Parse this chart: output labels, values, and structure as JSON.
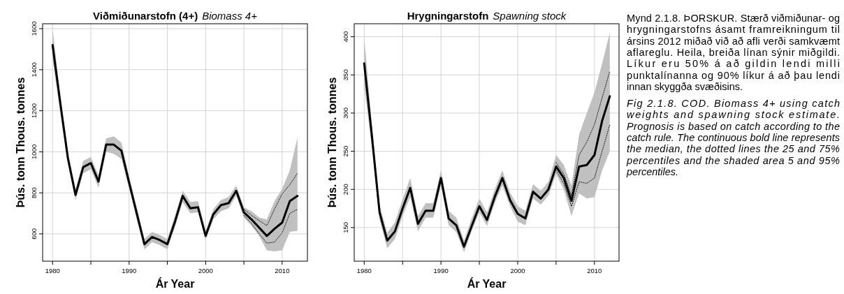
{
  "chart_data": [
    {
      "type": "line",
      "title": "Viðmiðunarstofn (4+)",
      "subtitle": "Biomass 4+",
      "xlabel": "Ár   Year",
      "ylabel": "Þús. tonn   Thous. tonnes",
      "x": [
        1980,
        1981,
        1982,
        1983,
        1984,
        1985,
        1986,
        1987,
        1988,
        1989,
        1990,
        1991,
        1992,
        1993,
        1994,
        1995,
        1996,
        1997,
        1998,
        1999,
        2000,
        2001,
        2002,
        2003,
        2004,
        2005,
        2006,
        2007,
        2008,
        2009,
        2010,
        2011,
        2012
      ],
      "series": [
        {
          "color": "#000000",
          "line_style": "solid",
          "values": [
            1520,
            1240,
            970,
            790,
            925,
            945,
            855,
            1035,
            1035,
            1005,
            850,
            700,
            550,
            585,
            570,
            550,
            660,
            785,
            725,
            730,
            590,
            695,
            740,
            750,
            810,
            705,
            670,
            630,
            590,
            625,
            655,
            760,
            785
          ],
          "lower": [
            1450,
            1190,
            940,
            765,
            895,
            915,
            825,
            1000,
            990,
            965,
            820,
            670,
            525,
            560,
            545,
            525,
            635,
            755,
            700,
            705,
            570,
            670,
            710,
            725,
            785,
            680,
            640,
            590,
            520,
            515,
            520,
            610,
            615
          ],
          "upper": [
            1600,
            1280,
            1000,
            815,
            955,
            975,
            885,
            1065,
            1075,
            1045,
            880,
            730,
            575,
            610,
            595,
            575,
            690,
            810,
            755,
            760,
            615,
            720,
            765,
            780,
            835,
            730,
            710,
            680,
            670,
            760,
            820,
            910,
            1070
          ]
        },
        {
          "color": "#000000",
          "line_style": "dotted",
          "values": [
            null,
            null,
            null,
            null,
            null,
            null,
            null,
            null,
            null,
            null,
            null,
            null,
            null,
            null,
            null,
            null,
            null,
            null,
            null,
            null,
            null,
            null,
            null,
            null,
            null,
            720,
            690,
            665,
            640,
            720,
            795,
            840,
            895
          ]
        },
        {
          "color": "#000000",
          "line_style": "dotted",
          "values": [
            null,
            null,
            null,
            null,
            null,
            null,
            null,
            null,
            null,
            null,
            null,
            null,
            null,
            null,
            null,
            null,
            null,
            null,
            null,
            null,
            null,
            null,
            null,
            null,
            null,
            690,
            650,
            600,
            555,
            560,
            605,
            700,
            720
          ]
        }
      ],
      "xlim": [
        1978.7,
        2013.3
      ],
      "ylim": [
        467,
        1624
      ],
      "xticks": [
        1980,
        {
          "value": 1985,
          "label": null
        },
        1990,
        {
          "value": 1995,
          "label": null
        },
        2000,
        {
          "value": 2005,
          "label": null
        },
        2010
      ],
      "yticks": [
        600,
        800,
        1000,
        1200,
        1400,
        1600
      ],
      "grid": true
    },
    {
      "type": "line",
      "title": "Hrygningarstofn",
      "subtitle": "Spawning stock",
      "xlabel": "Ár   Year",
      "ylabel": "Þús. tonn   Thous. tonnes",
      "x": [
        1980,
        1981,
        1982,
        1983,
        1984,
        1985,
        1986,
        1987,
        1988,
        1989,
        1990,
        1991,
        1992,
        1993,
        1994,
        1995,
        1996,
        1997,
        1998,
        1999,
        2000,
        2001,
        2002,
        2003,
        2004,
        2005,
        2006,
        2007,
        2008,
        2009,
        2010,
        2011,
        2012
      ],
      "series": [
        {
          "color": "#000000",
          "line_style": "solid",
          "values": [
            365,
            270,
            170,
            133,
            145,
            175,
            202,
            155,
            172,
            172,
            215,
            162,
            153,
            125,
            152,
            178,
            160,
            190,
            215,
            186,
            168,
            162,
            197,
            188,
            200,
            230,
            215,
            185,
            230,
            232,
            245,
            290,
            322
          ],
          "lower": [
            335,
            255,
            160,
            123,
            135,
            165,
            190,
            145,
            163,
            163,
            205,
            153,
            144,
            118,
            145,
            170,
            152,
            182,
            205,
            178,
            158,
            153,
            188,
            180,
            192,
            220,
            200,
            165,
            195,
            188,
            190,
            225,
            250
          ],
          "upper": [
            400,
            285,
            180,
            143,
            157,
            187,
            215,
            165,
            182,
            182,
            225,
            172,
            163,
            133,
            162,
            188,
            170,
            200,
            225,
            196,
            178,
            172,
            207,
            198,
            210,
            245,
            232,
            205,
            272,
            300,
            327,
            365,
            405
          ]
        },
        {
          "color": "#000000",
          "line_style": "dotted",
          "values": [
            null,
            null,
            null,
            null,
            null,
            null,
            null,
            null,
            null,
            null,
            null,
            null,
            null,
            null,
            null,
            null,
            null,
            null,
            null,
            null,
            null,
            null,
            null,
            null,
            null,
            235,
            220,
            192,
            245,
            262,
            285,
            320,
            355
          ]
        },
        {
          "color": "#000000",
          "line_style": "dotted",
          "values": [
            null,
            null,
            null,
            null,
            null,
            null,
            null,
            null,
            null,
            null,
            null,
            null,
            null,
            null,
            null,
            null,
            null,
            null,
            null,
            null,
            null,
            null,
            null,
            null,
            null,
            225,
            208,
            178,
            210,
            208,
            215,
            250,
            285
          ]
        }
      ],
      "xlim": [
        1978.7,
        2013.2
      ],
      "ylim": [
        106,
        417
      ],
      "xticks": [
        1980,
        {
          "value": 1985,
          "label": null
        },
        1990,
        {
          "value": 1995,
          "label": null
        },
        2000,
        {
          "value": 2005,
          "label": null
        },
        2010
      ],
      "yticks": [
        150,
        200,
        250,
        300,
        350,
        400
      ],
      "grid": true
    },
    {
      "type": "other",
      "annotations": [
        "Mynd 2.1.8. ÞORSKUR. Stærð viðmiðunar- og hrygningarstofns ásamt framreikningum til ársins 2012 miðað við að afli verði samkvæmt aflareglu. Heila, breiða línan sýnir miðgildi. Líkur eru 50% á að gildin lendi milli punktalínanna og 90% líkur á að þau lendi innan skyggða svæðisins.",
        "Fig 2.1.8. COD. Biomass 4+ using catch weights and spawning stock estimate. Prognosis is based on catch according to the catch rule. The continuous bold line represents the median, the dotted lines the 25 and 75% percentiles and the shaded area 5 and 95% percentiles."
      ]
    }
  ]
}
